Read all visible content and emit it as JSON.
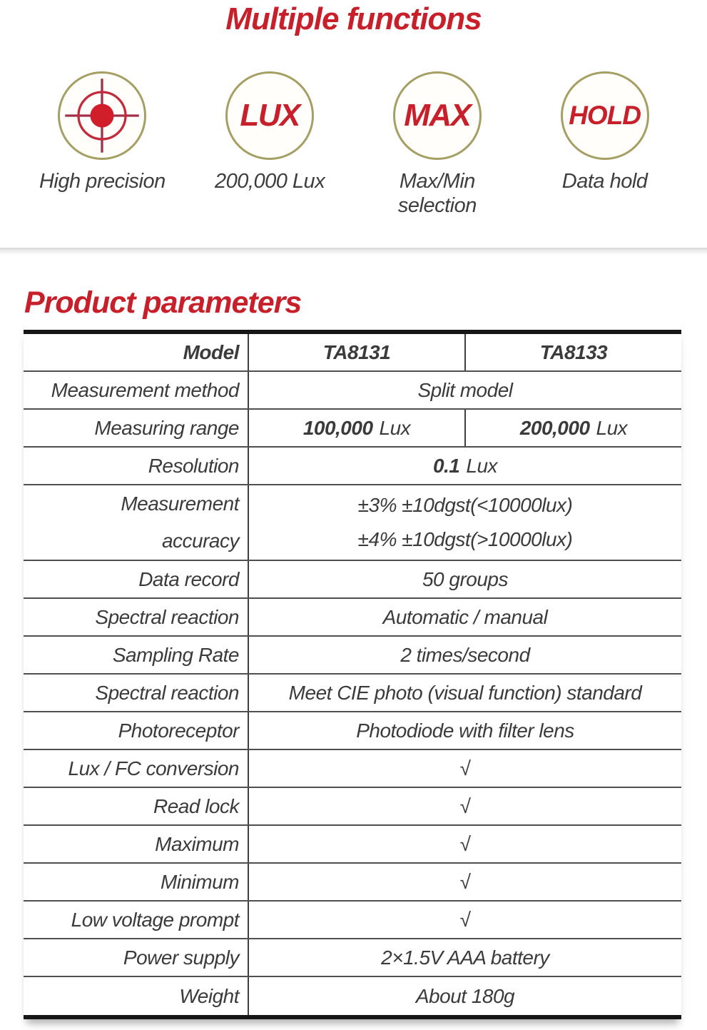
{
  "colors": {
    "accent_red": "#c8202a",
    "circle_border_olive": "#a59f63",
    "table_text": "#3b3b3b",
    "table_border_dark": "#161616"
  },
  "header": {
    "title": "Multiple functions"
  },
  "features": [
    {
      "icon": "crosshair-target-icon",
      "label": "High precision"
    },
    {
      "icon": "lux-badge-icon",
      "badge": "LUX",
      "label": "200,000 Lux"
    },
    {
      "icon": "max-badge-icon",
      "badge": "MAX",
      "label": "Max/Min\nselection"
    },
    {
      "icon": "hold-badge-icon",
      "badge": "HOLD",
      "label": "Data hold"
    }
  ],
  "section": {
    "title": "Product parameters"
  },
  "table": {
    "rows": [
      {
        "label": "Model",
        "labelBold": true,
        "cells": [
          {
            "text": "TA8131",
            "bold": true
          },
          {
            "text": "TA8133",
            "bold": true
          }
        ]
      },
      {
        "label": "Measurement method",
        "cells": [
          {
            "text": "Split model"
          }
        ]
      },
      {
        "label": "Measuring range",
        "cells": [
          {
            "strong": "100,000",
            "text": "Lux"
          },
          {
            "strong": "200,000",
            "text": "Lux"
          }
        ]
      },
      {
        "label": "Resolution",
        "cells": [
          {
            "strong": "0.1",
            "text": "Lux"
          }
        ]
      },
      {
        "label": "Measurement\naccuracy",
        "tall": true,
        "cells": [
          {
            "lines": [
              "±3% ±10dgst(<10000lux)",
              "±4% ±10dgst(>10000lux)"
            ]
          }
        ]
      },
      {
        "label": "Data record",
        "cells": [
          {
            "text": "50 groups"
          }
        ]
      },
      {
        "label": "Spectral reaction",
        "cells": [
          {
            "text": "Automatic / manual"
          }
        ]
      },
      {
        "label": "Sampling Rate",
        "cells": [
          {
            "text": "2 times/second"
          }
        ]
      },
      {
        "label": "Spectral reaction",
        "cells": [
          {
            "text": "Meet CIE photo (visual function) standard"
          }
        ]
      },
      {
        "label": "Photoreceptor",
        "cells": [
          {
            "text": "Photodiode with filter lens"
          }
        ]
      },
      {
        "label": "Lux / FC conversion",
        "cells": [
          {
            "text": "√"
          }
        ]
      },
      {
        "label": "Read lock",
        "cells": [
          {
            "text": "√"
          }
        ]
      },
      {
        "label": "Maximum",
        "cells": [
          {
            "text": "√"
          }
        ]
      },
      {
        "label": "Minimum",
        "cells": [
          {
            "text": "√"
          }
        ]
      },
      {
        "label": "Low voltage prompt",
        "cells": [
          {
            "text": "√"
          }
        ]
      },
      {
        "label": "Power supply",
        "cells": [
          {
            "text": "2×1.5V AAA battery"
          }
        ]
      },
      {
        "label": "Weight",
        "cells": [
          {
            "text": "About 180g"
          }
        ]
      }
    ]
  }
}
